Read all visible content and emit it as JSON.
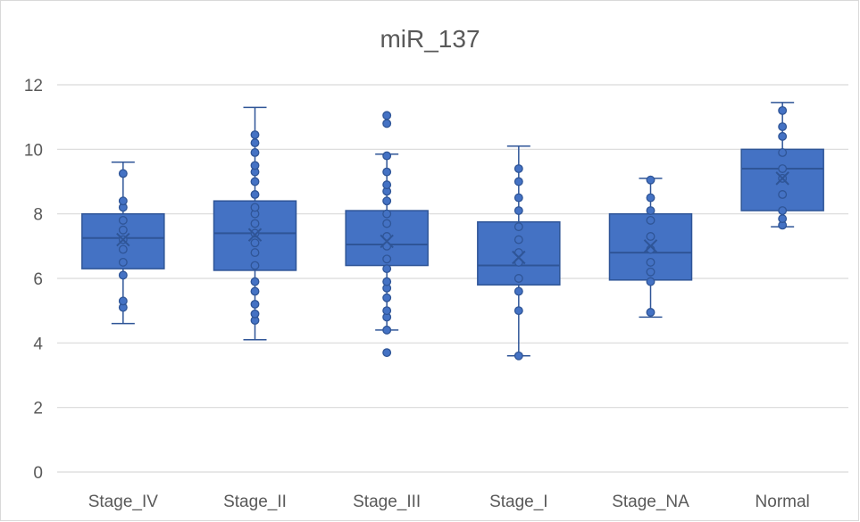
{
  "chart_data": {
    "type": "box",
    "title": "miR_137",
    "xlabel": "",
    "ylabel": "",
    "ylim": [
      0,
      12
    ],
    "yticks": [
      0,
      2,
      4,
      6,
      8,
      10,
      12
    ],
    "grid": true,
    "legend": "none",
    "colors": {
      "box": "#4472c4",
      "box_edge": "#2f5597",
      "grid": "#d9d9d9",
      "text": "#595959"
    },
    "categories": [
      "Stage_IV",
      "Stage_II",
      "Stage_III",
      "Stage_I",
      "Stage_NA",
      "Normal"
    ],
    "boxes": [
      {
        "category": "Stage_IV",
        "min": 4.6,
        "q1": 6.3,
        "median": 7.25,
        "q3": 8.0,
        "max": 9.6,
        "mean": 7.2,
        "points": [
          5.1,
          5.3,
          6.1,
          6.5,
          6.9,
          7.2,
          7.5,
          7.8,
          8.2,
          8.4,
          9.25
        ]
      },
      {
        "category": "Stage_II",
        "min": 4.1,
        "q1": 6.25,
        "median": 7.4,
        "q3": 8.4,
        "max": 11.3,
        "mean": 7.35,
        "points": [
          4.7,
          4.9,
          5.2,
          5.6,
          5.9,
          6.4,
          6.8,
          7.1,
          7.4,
          7.7,
          8.0,
          8.2,
          8.6,
          9.0,
          9.3,
          9.5,
          9.9,
          10.2,
          10.45
        ]
      },
      {
        "category": "Stage_III",
        "min": 4.4,
        "q1": 6.4,
        "median": 7.05,
        "q3": 8.1,
        "max": 9.85,
        "mean": 7.15,
        "points": [
          3.7,
          4.4,
          4.8,
          5.0,
          5.4,
          5.7,
          5.9,
          6.3,
          6.6,
          7.0,
          7.3,
          7.7,
          8.0,
          8.4,
          8.7,
          8.9,
          9.3,
          9.8,
          10.8,
          11.05
        ]
      },
      {
        "category": "Stage_I",
        "min": 3.6,
        "q1": 5.8,
        "median": 6.4,
        "q3": 7.75,
        "max": 10.1,
        "mean": 6.65,
        "points": [
          3.6,
          5.0,
          5.6,
          6.0,
          6.5,
          6.8,
          7.2,
          7.6,
          8.1,
          8.5,
          9.0,
          9.4
        ]
      },
      {
        "category": "Stage_NA",
        "min": 4.8,
        "q1": 5.95,
        "median": 6.8,
        "q3": 8.0,
        "max": 9.1,
        "mean": 7.0,
        "points": [
          4.95,
          5.9,
          6.2,
          6.5,
          6.9,
          7.3,
          7.8,
          8.1,
          8.5,
          9.05
        ]
      },
      {
        "category": "Normal",
        "min": 7.6,
        "q1": 8.1,
        "median": 9.4,
        "q3": 10.0,
        "max": 11.45,
        "mean": 9.1,
        "points": [
          7.65,
          7.85,
          8.1,
          8.6,
          9.1,
          9.4,
          9.9,
          10.4,
          10.7,
          11.2
        ]
      }
    ]
  }
}
